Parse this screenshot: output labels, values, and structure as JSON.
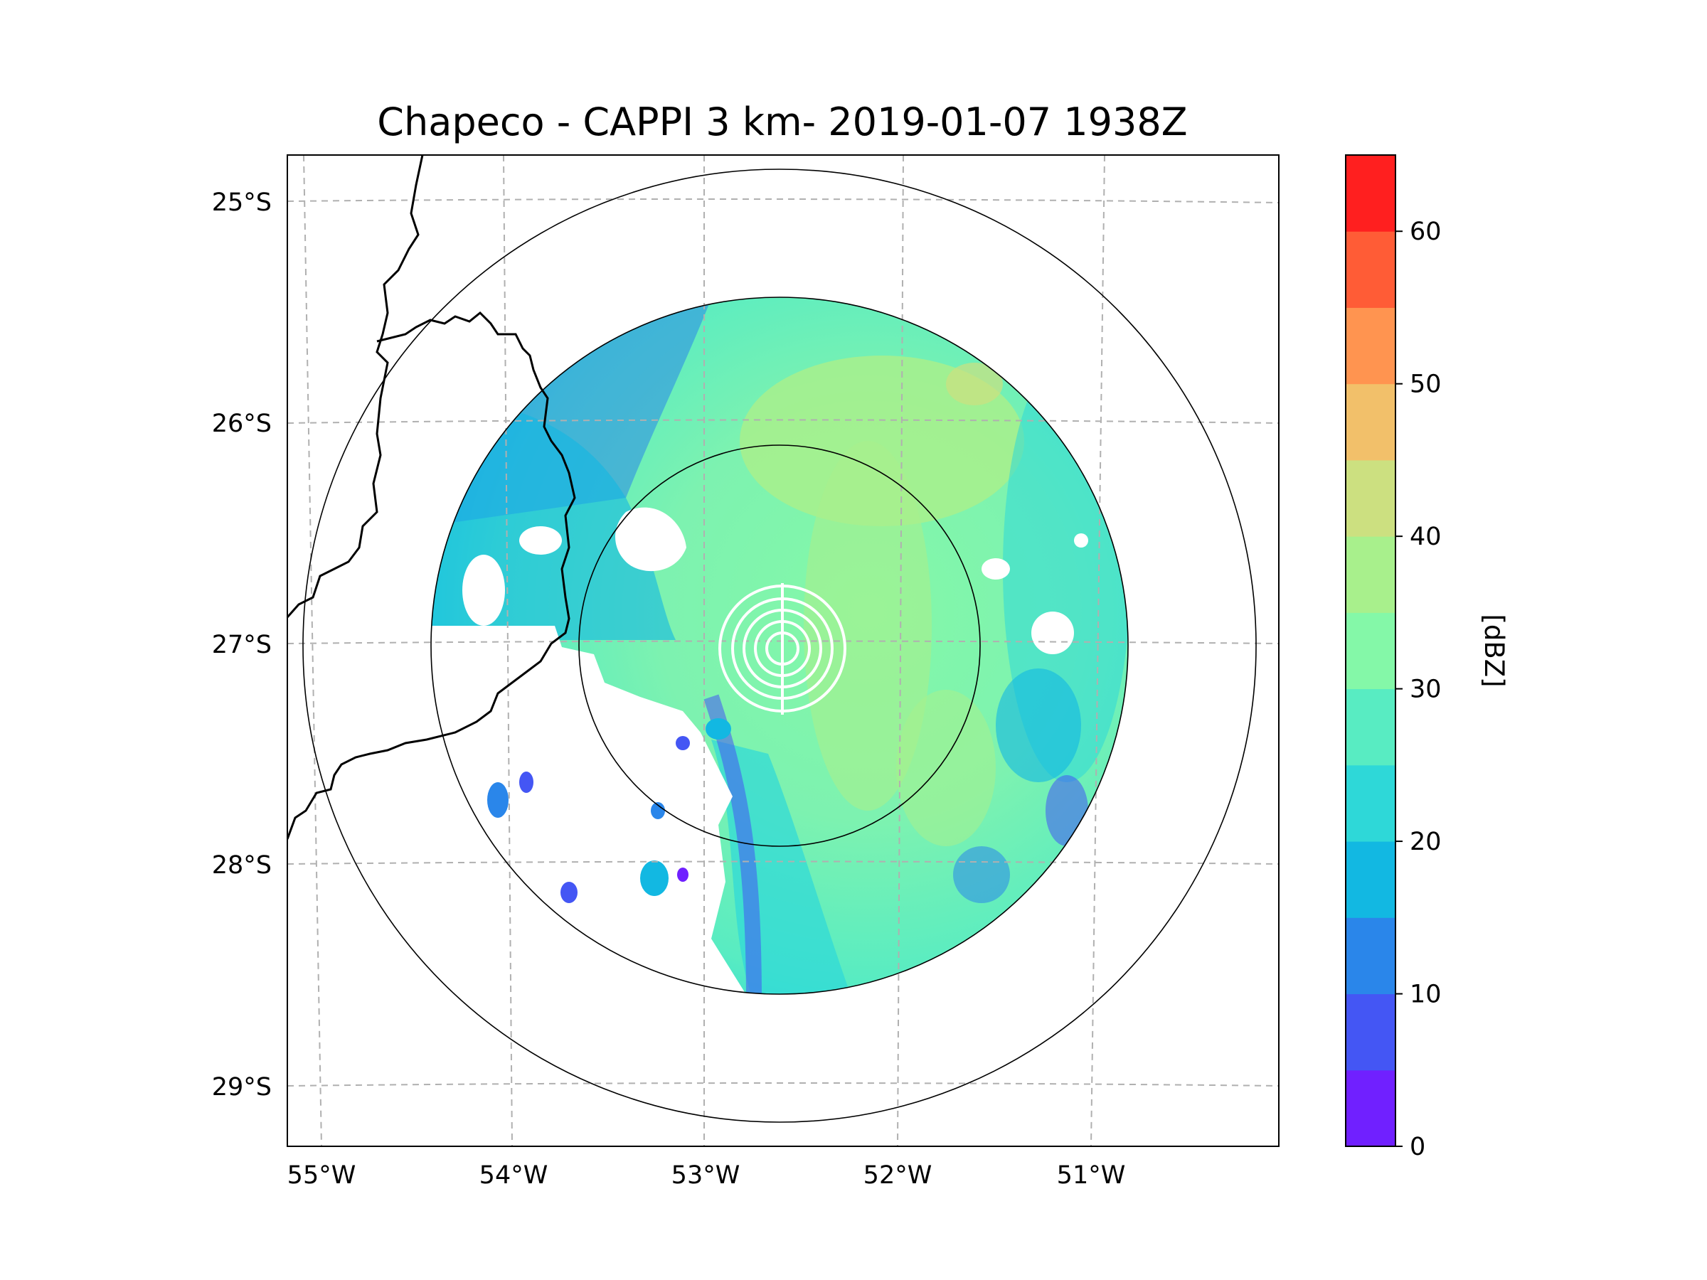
{
  "title": "Chapeco - CAPPI 3 km- 2019-01-07 1938Z",
  "map": {
    "lat_ticks": [
      "25°S",
      "26°S",
      "27°S",
      "28°S",
      "29°S"
    ],
    "lon_ticks": [
      "55°W",
      "54°W",
      "53°W",
      "52°W",
      "51°W"
    ],
    "radar_site": "Chapeco",
    "range_rings": [
      "ring-inner",
      "ring-data-edge",
      "ring-outer"
    ]
  },
  "colorbar": {
    "label": "[dBZ]",
    "ticks": [
      "0",
      "10",
      "20",
      "30",
      "40",
      "50",
      "60"
    ],
    "bins": [
      0,
      5,
      10,
      15,
      20,
      25,
      30,
      35,
      40,
      45,
      50,
      55,
      60,
      65
    ],
    "colors": [
      "#7020ff",
      "#4456f4",
      "#2a86ea",
      "#12b8e2",
      "#2ed8d8",
      "#58ecc2",
      "#84f8a8",
      "#a8f08c",
      "#cce080",
      "#f2c06a",
      "#ff9450",
      "#ff5c36",
      "#ff1f1f"
    ]
  },
  "colors": {
    "grid": "#b0b0b0",
    "border": "#000000",
    "ring_overlay": "#ffffff"
  }
}
